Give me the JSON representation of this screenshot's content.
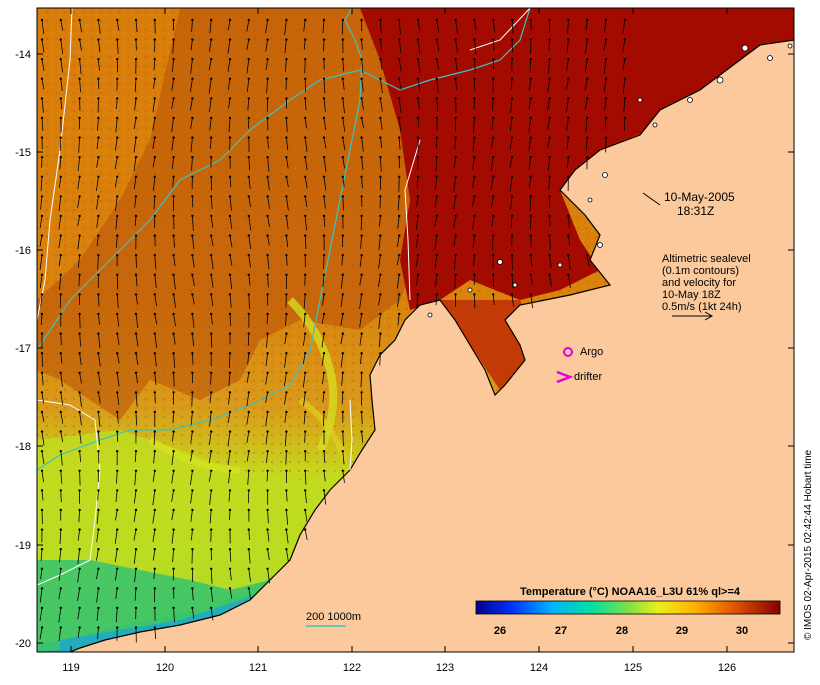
{
  "map": {
    "x_ticks": [
      "119",
      "120",
      "121",
      "122",
      "123",
      "124",
      "125",
      "126"
    ],
    "y_ticks": [
      "-14",
      "-15",
      "-16",
      "-17",
      "-18",
      "-19",
      "-20"
    ],
    "date_line1": "10-May-2005",
    "date_line2": "18:31Z",
    "altimetry_lines": [
      "Altimetric sealevel",
      "(0.1m contours)",
      "and velocity for",
      "10-May 18Z",
      "0.5m/s (1kt 24h)"
    ],
    "argo_label": "Argo",
    "drifter_label": "drifter",
    "isobath_label": "200  1000m",
    "colorbar_title": "Temperature (°C) NOAA16_L3U 61% ql>=4",
    "colorbar_ticks": [
      "26",
      "27",
      "28",
      "29",
      "30"
    ],
    "credit": "© IMOS 02-Apr-2015 02:42:44 Hobart time"
  },
  "colors": {
    "land": "#fbc99b",
    "sst_hot": "#a30a00",
    "sst_warm": "#d06a06",
    "sst_mid": "#e59516",
    "sst_cool": "#c9e01a",
    "sst_cold": "#35c56a",
    "isobath": "#3ec2c0",
    "argo": "#e000e0"
  }
}
